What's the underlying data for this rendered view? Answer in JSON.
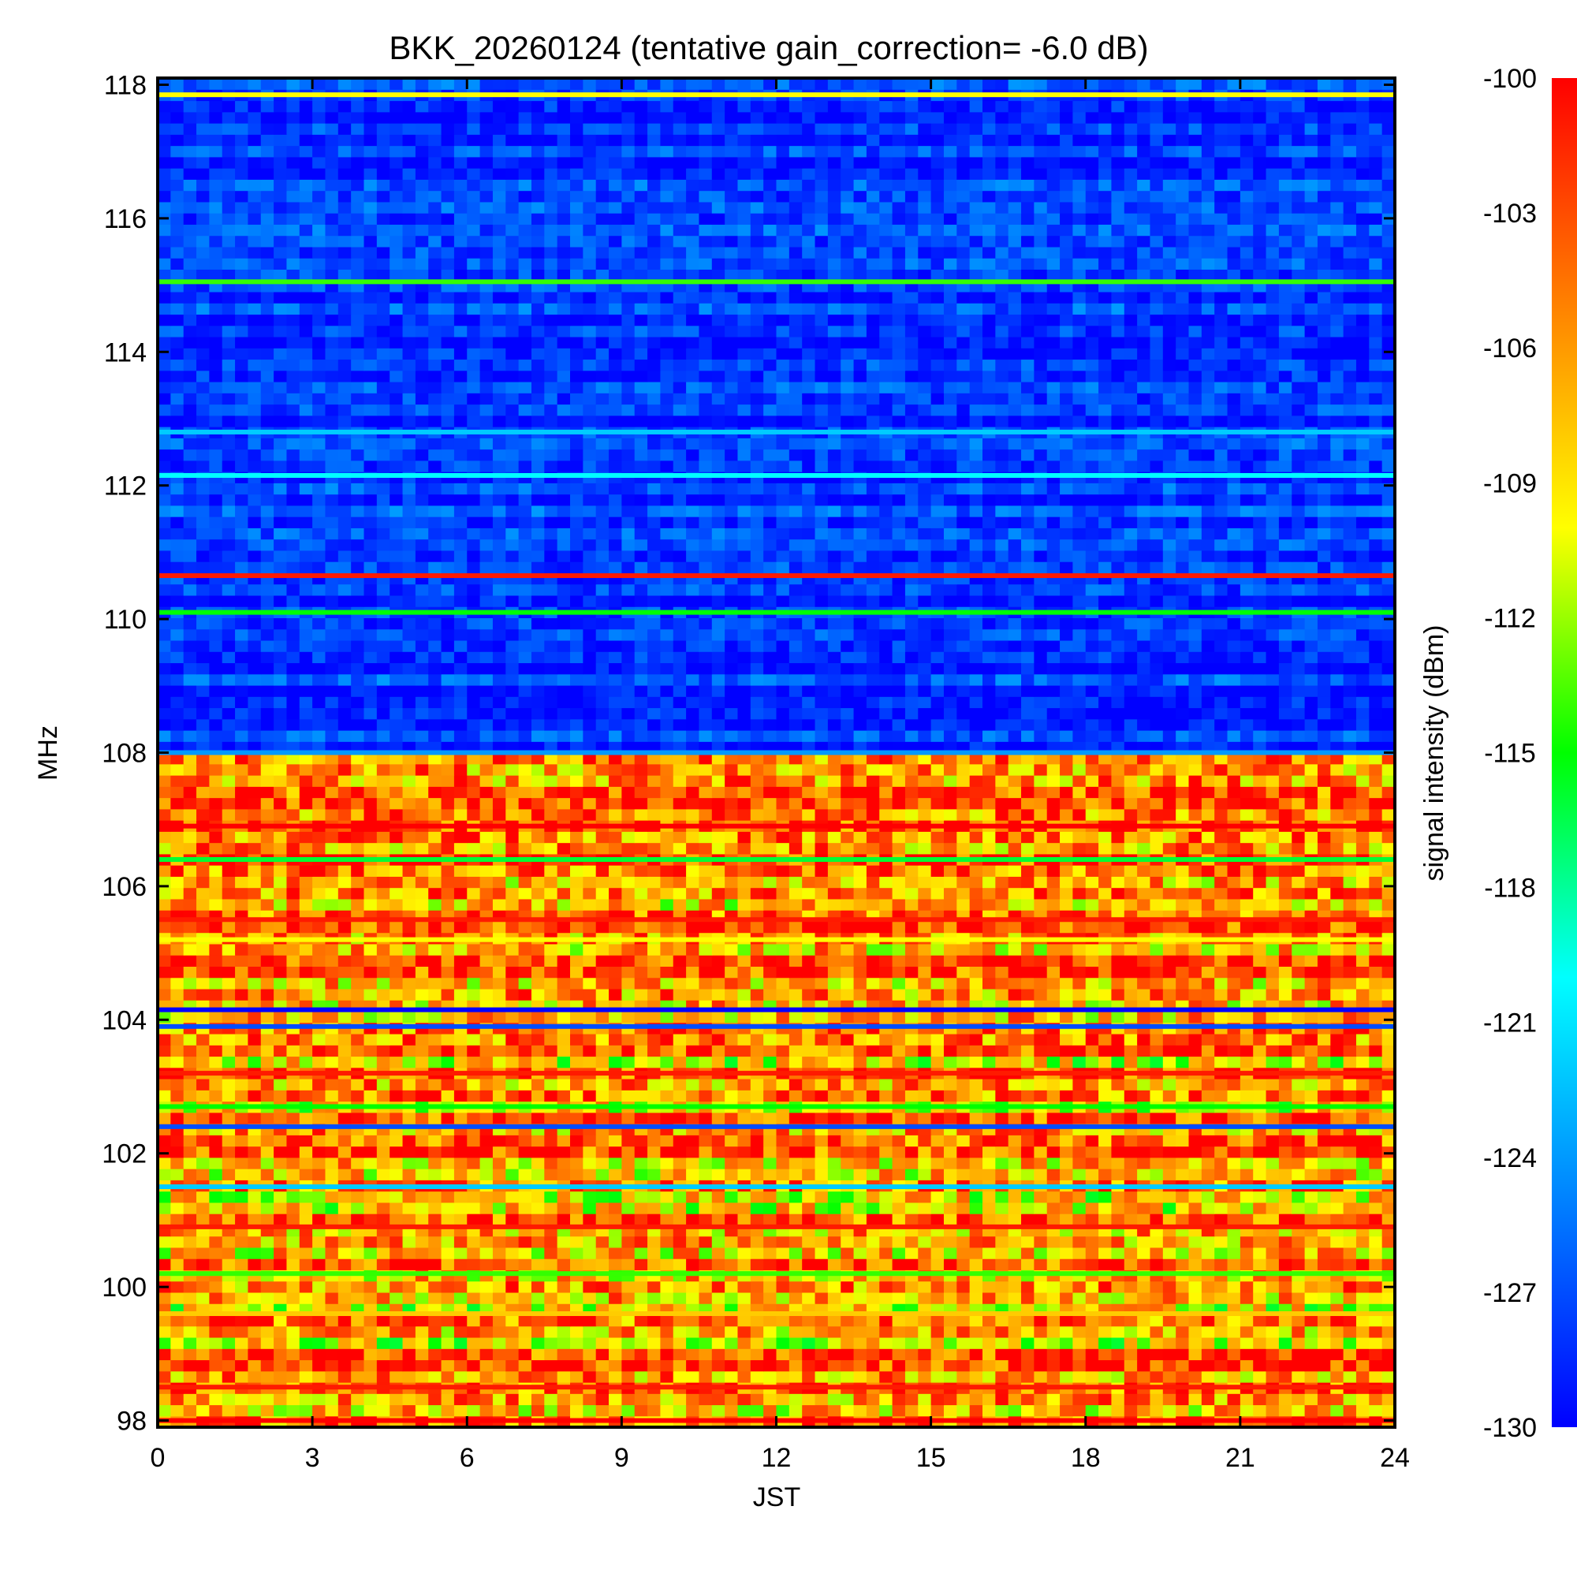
{
  "chart_data": {
    "type": "heatmap",
    "title": "BKK_20260124 (tentative gain_correction= -6.0 dB)",
    "xlabel": "JST",
    "ylabel": "MHz",
    "colorbar_label": "signal intensity (dBm)",
    "xlim": [
      0,
      24
    ],
    "ylim": [
      97.9,
      118.1
    ],
    "x_ticks": [
      0,
      3,
      6,
      9,
      12,
      15,
      18,
      21,
      24
    ],
    "x_tick_labels": [
      "0",
      "3",
      "6",
      "9",
      "12",
      "15",
      "18",
      "21",
      "24"
    ],
    "y_ticks": [
      98,
      100,
      102,
      104,
      106,
      108,
      110,
      112,
      114,
      116,
      118
    ],
    "y_tick_labels": [
      "98",
      "100",
      "102",
      "104",
      "106",
      "108",
      "110",
      "112",
      "114",
      "116",
      "118"
    ],
    "color_range": [
      -130,
      -100
    ],
    "colorbar_ticks": [
      -100,
      -103,
      -106,
      -109,
      -112,
      -115,
      -118,
      -121,
      -124,
      -127,
      -130
    ],
    "colorbar_tick_labels": [
      "-100",
      "-103",
      "-106",
      "-109",
      "-112",
      "-115",
      "-118",
      "-121",
      "-124",
      "-127",
      "-130"
    ],
    "colormap": [
      "#0000ff",
      "#0080ff",
      "#00ffff",
      "#00ff00",
      "#ffff00",
      "#ff8000",
      "#ff0000"
    ],
    "bands": [
      {
        "f0": 108.0,
        "f1": 118.1,
        "base_dBm": -128,
        "jitter": 2.5
      },
      {
        "f0": 97.9,
        "f1": 108.0,
        "base_dBm": -106,
        "jitter": 6
      }
    ],
    "freq_lines": [
      {
        "freq": 117.85,
        "dBm": -110
      },
      {
        "freq": 115.05,
        "dBm": -114
      },
      {
        "freq": 112.8,
        "dBm": -122
      },
      {
        "freq": 112.15,
        "dBm": -120
      },
      {
        "freq": 110.65,
        "dBm": -101
      },
      {
        "freq": 110.1,
        "dBm": -115
      },
      {
        "freq": 108.0,
        "dBm": -124
      },
      {
        "freq": 106.9,
        "dBm": -100
      },
      {
        "freq": 106.4,
        "dBm": -116
      },
      {
        "freq": 105.5,
        "dBm": -101
      },
      {
        "freq": 105.2,
        "dBm": -110
      },
      {
        "freq": 104.15,
        "dBm": -130
      },
      {
        "freq": 103.9,
        "dBm": -127
      },
      {
        "freq": 103.2,
        "dBm": -101
      },
      {
        "freq": 102.7,
        "dBm": -115
      },
      {
        "freq": 102.4,
        "dBm": -127
      },
      {
        "freq": 101.5,
        "dBm": -122
      },
      {
        "freq": 100.9,
        "dBm": -101
      },
      {
        "freq": 100.2,
        "dBm": -114
      },
      {
        "freq": 99.6,
        "dBm": -108
      },
      {
        "freq": 98.5,
        "dBm": -101
      },
      {
        "freq": 98.0,
        "dBm": -100
      }
    ]
  }
}
